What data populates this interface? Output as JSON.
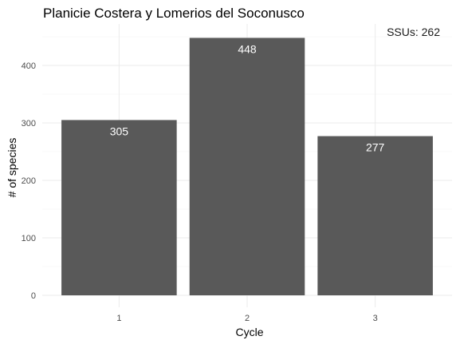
{
  "chart_data": {
    "type": "bar",
    "title": "Planicie Costera y Lomerios del Soconusco",
    "annotation": "SSUs: 262",
    "xlabel": "Cycle",
    "ylabel": "# of species",
    "categories": [
      "1",
      "2",
      "3"
    ],
    "values": [
      305,
      448,
      277
    ],
    "value_labels": [
      "305",
      "448",
      "277"
    ],
    "ylim": [
      0,
      470
    ],
    "yticks": [
      0,
      100,
      200,
      300,
      400
    ],
    "ytick_labels": [
      "0",
      "100",
      "200",
      "300",
      "400"
    ],
    "grid": true,
    "bar_color": "#595959",
    "label_color": "#ffffff"
  }
}
